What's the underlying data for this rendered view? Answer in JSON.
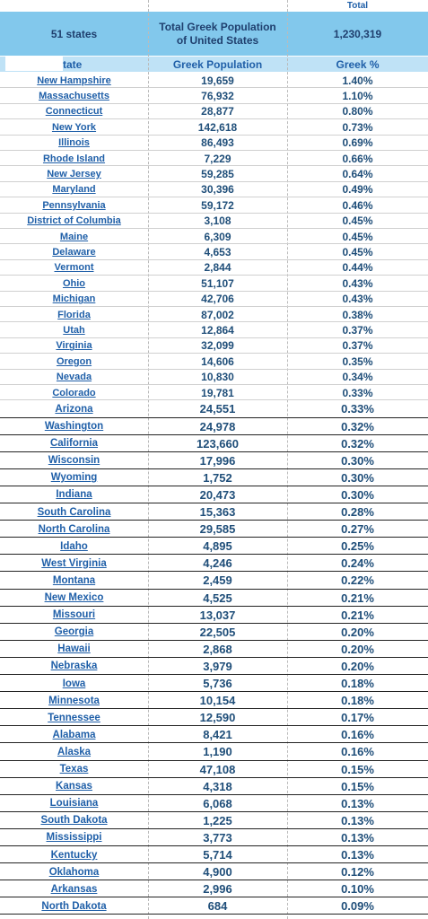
{
  "header": {
    "corner_label": "Total",
    "states_label": "51 states",
    "title_lines": [
      "Total Greek Population",
      "of United States"
    ],
    "total": "1,230,319"
  },
  "table": {
    "columns": [
      "tate",
      "Greek Population",
      "Greek %"
    ],
    "rows": [
      [
        "New Hampshire",
        "19,659",
        "1.40%"
      ],
      [
        "Massachusetts",
        "76,932",
        "1.10%"
      ],
      [
        "Connecticut",
        "28,877",
        "0.80%"
      ],
      [
        "New York",
        "142,618",
        "0.73%"
      ],
      [
        "Illinois",
        "86,493",
        "0.69%"
      ],
      [
        "Rhode Island",
        "7,229",
        "0.66%"
      ],
      [
        "New Jersey",
        "59,285",
        "0.64%"
      ],
      [
        "Maryland",
        "30,396",
        "0.49%"
      ],
      [
        "Pennsylvania",
        "59,172",
        "0.46%"
      ],
      [
        "District of Columbia",
        "3,108",
        "0.45%"
      ],
      [
        "Maine",
        "6,309",
        "0.45%"
      ],
      [
        "Delaware",
        "4,653",
        "0.45%"
      ],
      [
        "Vermont",
        "2,844",
        "0.44%"
      ],
      [
        "Ohio",
        "51,107",
        "0.43%"
      ],
      [
        "Michigan",
        "42,706",
        "0.43%"
      ],
      [
        "Florida",
        "87,002",
        "0.38%"
      ],
      [
        "Utah",
        "12,864",
        "0.37%"
      ],
      [
        "Virginia",
        "32,099",
        "0.37%"
      ],
      [
        "Oregon",
        "14,606",
        "0.35%"
      ],
      [
        "Nevada",
        "10,830",
        "0.34%"
      ],
      [
        "Colorado",
        "19,781",
        "0.33%"
      ],
      [
        "Arizona",
        "24,551",
        "0.33%"
      ],
      [
        "Washington",
        "24,978",
        "0.32%"
      ],
      [
        "California",
        "123,660",
        "0.32%"
      ],
      [
        "Wisconsin",
        "17,996",
        "0.30%"
      ],
      [
        "Wyoming",
        "1,752",
        "0.30%"
      ],
      [
        "Indiana",
        "20,473",
        "0.30%"
      ],
      [
        "South Carolina",
        "15,363",
        "0.28%"
      ],
      [
        "North Carolina",
        "29,585",
        "0.27%"
      ],
      [
        "Idaho",
        "4,895",
        "0.25%"
      ],
      [
        "West Virginia",
        "4,246",
        "0.24%"
      ],
      [
        "Montana",
        "2,459",
        "0.22%"
      ],
      [
        "New Mexico",
        "4,525",
        "0.21%"
      ],
      [
        "Missouri",
        "13,037",
        "0.21%"
      ],
      [
        "Georgia",
        "22,505",
        "0.20%"
      ],
      [
        "Hawaii",
        "2,868",
        "0.20%"
      ],
      [
        "Nebraska",
        "3,979",
        "0.20%"
      ],
      [
        "Iowa",
        "5,736",
        "0.18%"
      ],
      [
        "Minnesota",
        "10,154",
        "0.18%"
      ],
      [
        "Tennessee",
        "12,590",
        "0.17%"
      ],
      [
        "Alabama",
        "8,421",
        "0.16%"
      ],
      [
        "Alaska",
        "1,190",
        "0.16%"
      ],
      [
        "Texas",
        "47,108",
        "0.15%"
      ],
      [
        "Kansas",
        "4,318",
        "0.15%"
      ],
      [
        "Louisiana",
        "6,068",
        "0.13%"
      ],
      [
        "South Dakota",
        "1,225",
        "0.13%"
      ],
      [
        "Mississippi",
        "3,773",
        "0.13%"
      ],
      [
        "Kentucky",
        "5,714",
        "0.13%"
      ],
      [
        "Oklahoma",
        "4,900",
        "0.12%"
      ],
      [
        "Arkansas",
        "2,996",
        "0.10%"
      ],
      [
        "North Dakota",
        "684",
        "0.09%"
      ]
    ]
  }
}
